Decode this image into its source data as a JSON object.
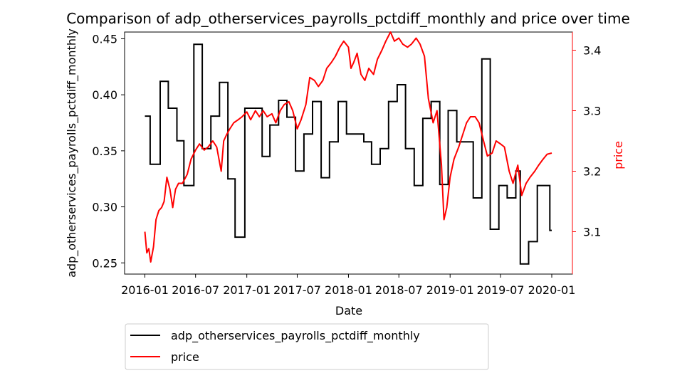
{
  "chart_data": {
    "type": "line",
    "title": "Comparison of adp_otherservices_payrolls_pctdiff_monthly and price over time",
    "xlabel": "Date",
    "ylabel_left": "adp_otherservices_payrolls_pctdiff_monthly",
    "ylabel_right": "price",
    "x_ticks": [
      "2016-01",
      "2016-07",
      "2017-01",
      "2017-07",
      "2018-01",
      "2018-07",
      "2019-01",
      "2019-07",
      "2020-01"
    ],
    "y_left_ticks": [
      "0.25",
      "0.30",
      "0.35",
      "0.40",
      "0.45"
    ],
    "y_right_ticks": [
      "3.1",
      "3.2",
      "3.3",
      "3.4"
    ],
    "y_left_range": [
      0.24,
      0.456
    ],
    "y_right_range": [
      3.03,
      3.43
    ],
    "grid": false,
    "legend_position": "below",
    "colors": {
      "left_axis": "#000000",
      "right_axis": "#ff0000"
    },
    "series": [
      {
        "name": "adp_otherservices_payrolls_pctdiff_monthly",
        "axis": "left",
        "color": "#000000",
        "step_points": [
          [
            "2016-01-01",
            0.381
          ],
          [
            "2016-01-20",
            0.338
          ],
          [
            "2016-02-25",
            0.412
          ],
          [
            "2016-03-25",
            0.388
          ],
          [
            "2016-04-25",
            0.359
          ],
          [
            "2016-05-20",
            0.319
          ],
          [
            "2016-06-25",
            0.445
          ],
          [
            "2016-07-25",
            0.352
          ],
          [
            "2016-08-25",
            0.381
          ],
          [
            "2016-09-25",
            0.411
          ],
          [
            "2016-10-25",
            0.325
          ],
          [
            "2016-11-20",
            0.273
          ],
          [
            "2016-12-25",
            0.388
          ],
          [
            "2017-02-25",
            0.345
          ],
          [
            "2017-03-25",
            0.373
          ],
          [
            "2017-04-25",
            0.395
          ],
          [
            "2017-05-25",
            0.38
          ],
          [
            "2017-06-25",
            0.332
          ],
          [
            "2017-07-25",
            0.365
          ],
          [
            "2017-08-25",
            0.394
          ],
          [
            "2017-09-25",
            0.326
          ],
          [
            "2017-10-25",
            0.358
          ],
          [
            "2017-11-25",
            0.394
          ],
          [
            "2017-12-25",
            0.365
          ],
          [
            "2018-02-25",
            0.358
          ],
          [
            "2018-03-25",
            0.338
          ],
          [
            "2018-04-25",
            0.352
          ],
          [
            "2018-05-25",
            0.394
          ],
          [
            "2018-06-25",
            0.409
          ],
          [
            "2018-07-25",
            0.352
          ],
          [
            "2018-08-25",
            0.319
          ],
          [
            "2018-09-25",
            0.379
          ],
          [
            "2018-10-25",
            0.394
          ],
          [
            "2018-11-25",
            0.32
          ],
          [
            "2018-12-25",
            0.386
          ],
          [
            "2019-01-25",
            0.358
          ],
          [
            "2019-03-25",
            0.308
          ],
          [
            "2019-04-25",
            0.432
          ],
          [
            "2019-05-25",
            0.28
          ],
          [
            "2019-06-25",
            0.319
          ],
          [
            "2019-07-25",
            0.308
          ],
          [
            "2019-08-25",
            0.332
          ],
          [
            "2019-09-10",
            0.249
          ],
          [
            "2019-10-10",
            0.269
          ],
          [
            "2019-11-10",
            0.319
          ],
          [
            "2019-12-25",
            0.279
          ],
          [
            "2020-01-01",
            0.279
          ]
        ]
      },
      {
        "name": "price",
        "axis": "right",
        "color": "#ff0000",
        "points": [
          [
            "2016-01-01",
            3.1
          ],
          [
            "2016-01-08",
            3.065
          ],
          [
            "2016-01-15",
            3.072
          ],
          [
            "2016-01-22",
            3.05
          ],
          [
            "2016-02-01",
            3.075
          ],
          [
            "2016-02-10",
            3.12
          ],
          [
            "2016-02-20",
            3.135
          ],
          [
            "2016-03-01",
            3.14
          ],
          [
            "2016-03-10",
            3.15
          ],
          [
            "2016-03-20",
            3.19
          ],
          [
            "2016-03-31",
            3.17
          ],
          [
            "2016-04-10",
            3.14
          ],
          [
            "2016-04-20",
            3.17
          ],
          [
            "2016-05-01",
            3.18
          ],
          [
            "2016-05-15",
            3.18
          ],
          [
            "2016-06-01",
            3.195
          ],
          [
            "2016-06-15",
            3.22
          ],
          [
            "2016-07-01",
            3.235
          ],
          [
            "2016-07-15",
            3.245
          ],
          [
            "2016-08-01",
            3.235
          ],
          [
            "2016-08-15",
            3.24
          ],
          [
            "2016-09-01",
            3.25
          ],
          [
            "2016-09-15",
            3.24
          ],
          [
            "2016-10-01",
            3.2
          ],
          [
            "2016-10-10",
            3.25
          ],
          [
            "2016-10-20",
            3.26
          ],
          [
            "2016-11-01",
            3.27
          ],
          [
            "2016-11-15",
            3.28
          ],
          [
            "2016-12-01",
            3.285
          ],
          [
            "2016-12-15",
            3.29
          ],
          [
            "2017-01-01",
            3.298
          ],
          [
            "2017-01-15",
            3.285
          ],
          [
            "2017-02-01",
            3.3
          ],
          [
            "2017-02-15",
            3.29
          ],
          [
            "2017-03-01",
            3.3
          ],
          [
            "2017-03-15",
            3.29
          ],
          [
            "2017-04-01",
            3.295
          ],
          [
            "2017-04-15",
            3.28
          ],
          [
            "2017-05-01",
            3.3
          ],
          [
            "2017-05-15",
            3.31
          ],
          [
            "2017-06-01",
            3.315
          ],
          [
            "2017-06-15",
            3.3
          ],
          [
            "2017-07-01",
            3.27
          ],
          [
            "2017-07-15",
            3.285
          ],
          [
            "2017-08-01",
            3.31
          ],
          [
            "2017-08-15",
            3.355
          ],
          [
            "2017-09-01",
            3.35
          ],
          [
            "2017-09-15",
            3.34
          ],
          [
            "2017-10-01",
            3.35
          ],
          [
            "2017-10-15",
            3.37
          ],
          [
            "2017-11-01",
            3.38
          ],
          [
            "2017-11-15",
            3.39
          ],
          [
            "2017-12-01",
            3.405
          ],
          [
            "2017-12-15",
            3.415
          ],
          [
            "2018-01-01",
            3.405
          ],
          [
            "2018-01-10",
            3.37
          ],
          [
            "2018-01-20",
            3.38
          ],
          [
            "2018-02-01",
            3.395
          ],
          [
            "2018-02-15",
            3.36
          ],
          [
            "2018-03-01",
            3.35
          ],
          [
            "2018-03-15",
            3.37
          ],
          [
            "2018-04-01",
            3.36
          ],
          [
            "2018-04-15",
            3.385
          ],
          [
            "2018-05-01",
            3.4
          ],
          [
            "2018-05-15",
            3.415
          ],
          [
            "2018-06-01",
            3.43
          ],
          [
            "2018-06-15",
            3.415
          ],
          [
            "2018-07-01",
            3.42
          ],
          [
            "2018-07-15",
            3.41
          ],
          [
            "2018-08-01",
            3.405
          ],
          [
            "2018-08-15",
            3.41
          ],
          [
            "2018-09-01",
            3.42
          ],
          [
            "2018-09-15",
            3.41
          ],
          [
            "2018-10-01",
            3.39
          ],
          [
            "2018-10-15",
            3.32
          ],
          [
            "2018-11-01",
            3.28
          ],
          [
            "2018-11-15",
            3.3
          ],
          [
            "2018-12-01",
            3.21
          ],
          [
            "2018-12-10",
            3.12
          ],
          [
            "2018-12-20",
            3.14
          ],
          [
            "2019-01-01",
            3.19
          ],
          [
            "2019-01-15",
            3.22
          ],
          [
            "2019-02-01",
            3.24
          ],
          [
            "2019-02-15",
            3.26
          ],
          [
            "2019-03-01",
            3.28
          ],
          [
            "2019-03-15",
            3.29
          ],
          [
            "2019-04-01",
            3.29
          ],
          [
            "2019-04-15",
            3.28
          ],
          [
            "2019-05-01",
            3.25
          ],
          [
            "2019-05-15",
            3.225
          ],
          [
            "2019-06-01",
            3.23
          ],
          [
            "2019-06-15",
            3.25
          ],
          [
            "2019-07-01",
            3.245
          ],
          [
            "2019-07-15",
            3.24
          ],
          [
            "2019-08-01",
            3.2
          ],
          [
            "2019-08-15",
            3.18
          ],
          [
            "2019-09-01",
            3.21
          ],
          [
            "2019-09-15",
            3.16
          ],
          [
            "2019-10-01",
            3.18
          ],
          [
            "2019-10-15",
            3.19
          ],
          [
            "2019-11-01",
            3.2
          ],
          [
            "2019-11-15",
            3.21
          ],
          [
            "2019-12-01",
            3.22
          ],
          [
            "2019-12-15",
            3.228
          ],
          [
            "2020-01-01",
            3.23
          ]
        ]
      }
    ]
  }
}
